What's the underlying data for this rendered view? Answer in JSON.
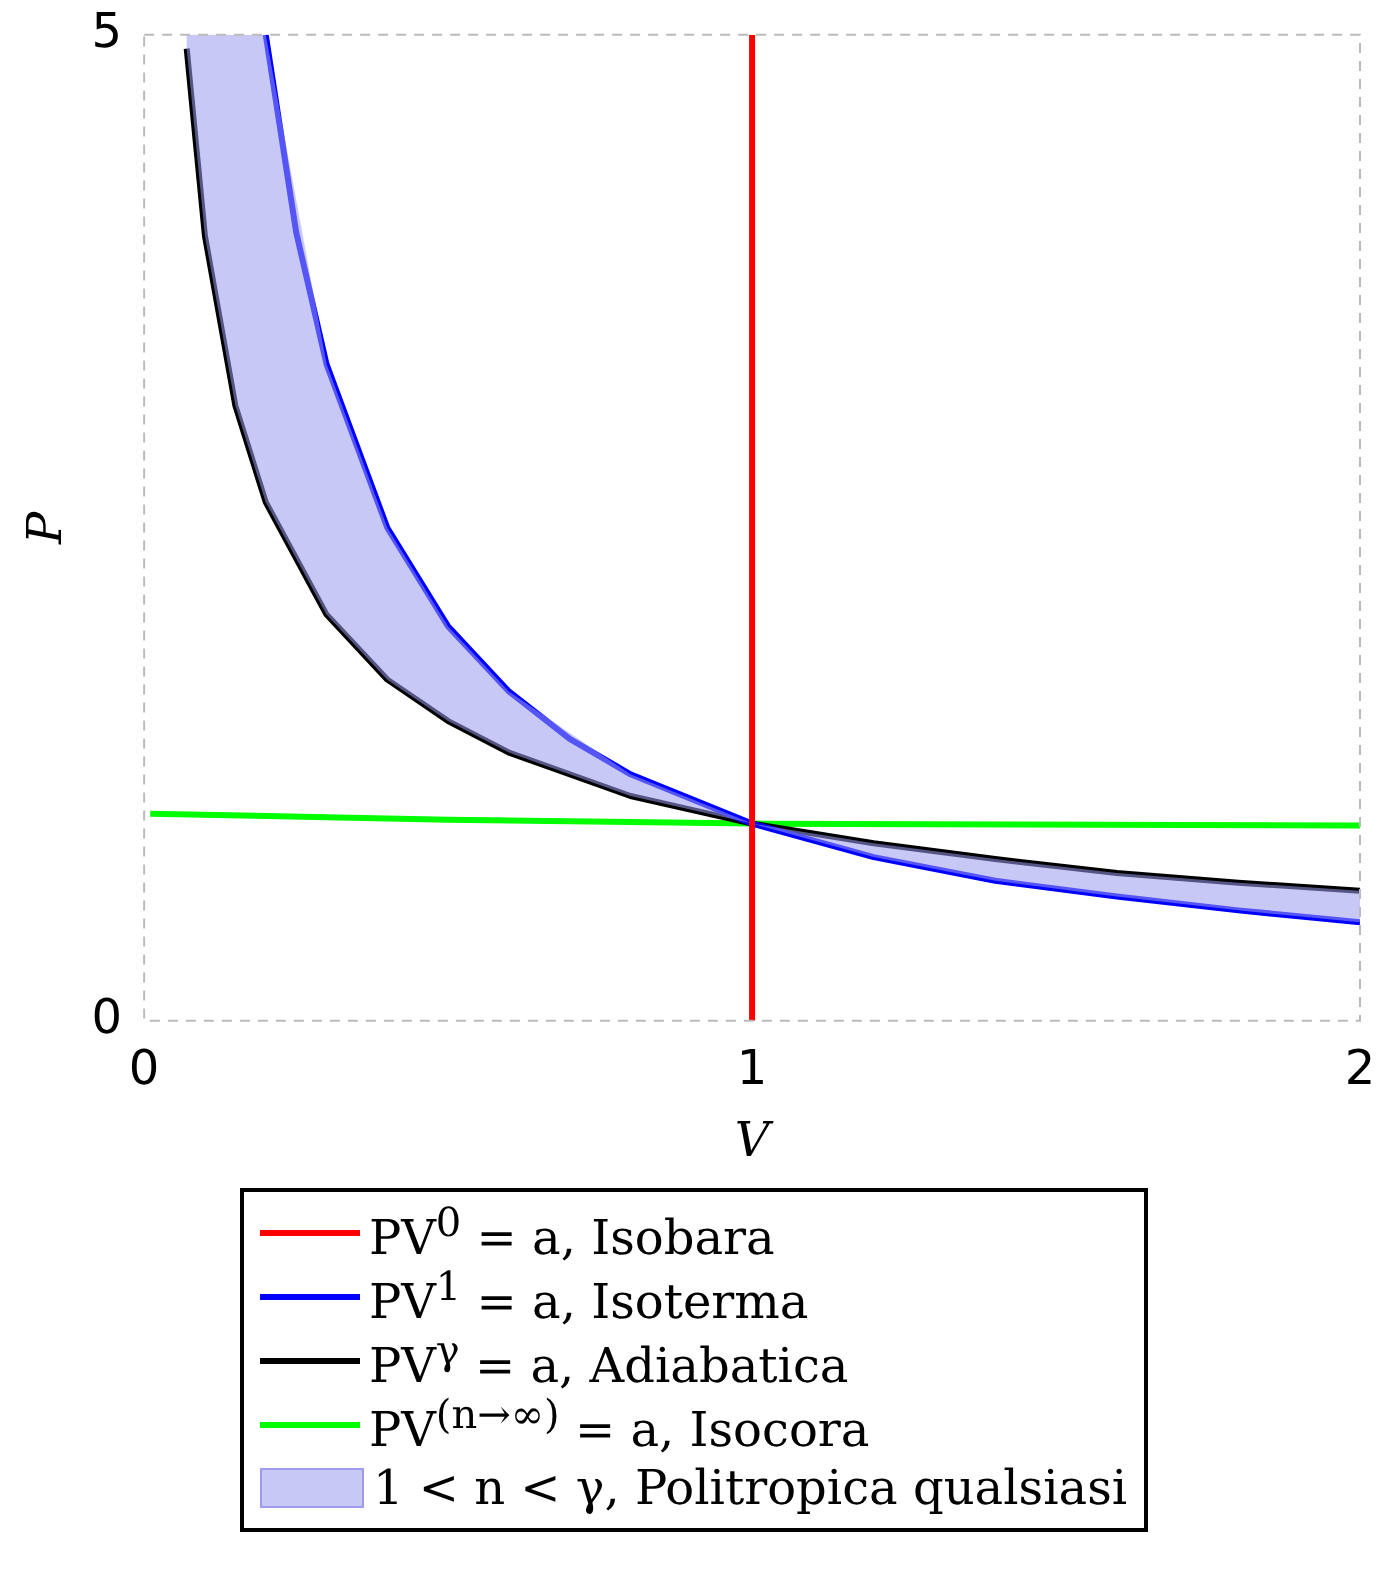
{
  "chart_data": {
    "type": "line",
    "xlabel": "V",
    "ylabel": "P",
    "xlim": [
      0,
      2
    ],
    "xticks": [
      0,
      1,
      2
    ],
    "ylim": [
      0,
      5
    ],
    "yticks": [
      0,
      5
    ],
    "grid": false,
    "legend": "bottom",
    "marker": "none",
    "series": [
      {
        "name": "1 < n < γ, Politropica qualsiasi",
        "type": "area",
        "color": "#9a9aee",
        "x": [
          0.07,
          0.1,
          0.15,
          0.2,
          0.3,
          0.4,
          0.5,
          0.6,
          0.8,
          1,
          1.2,
          1.4,
          1.6,
          1.8,
          2
        ],
        "values": [
          null,
          null,
          null,
          null,
          null,
          null,
          null,
          null,
          null,
          null,
          null,
          null,
          null,
          null,
          null
        ],
        "lower": [
          4.93,
          3.98,
          3.12,
          2.63,
          2.06,
          1.73,
          1.52,
          1.36,
          1.14,
          1,
          0.83,
          0.71,
          0.63,
          0.56,
          0.5
        ],
        "upper": [
          5,
          5,
          5,
          5,
          3.33,
          2.5,
          2,
          1.67,
          1.25,
          1,
          0.9,
          0.82,
          0.75,
          0.7,
          0.66
        ]
      },
      {
        "name": "PV$^{0}$ = a, Isobara",
        "color": "#ff0000",
        "x": [
          1,
          1
        ],
        "values": [
          0,
          5
        ]
      },
      {
        "name": "PV$^{1}$ = a, Isoterma",
        "color": "#0000ff",
        "x": [
          0.2,
          0.25,
          0.3,
          0.4,
          0.5,
          0.6,
          0.7,
          0.8,
          1,
          1.2,
          1.4,
          1.6,
          1.8,
          2
        ],
        "values": [
          5,
          4,
          3.33,
          2.5,
          2,
          1.67,
          1.43,
          1.25,
          1,
          0.83,
          0.71,
          0.63,
          0.56,
          0.5
        ]
      },
      {
        "name": "PV$^{γ}$ = a, Adiabatica",
        "color": "#000000",
        "x": [
          0.07,
          0.1,
          0.15,
          0.2,
          0.3,
          0.4,
          0.5,
          0.6,
          0.8,
          1,
          1.2,
          1.4,
          1.6,
          1.8,
          2
        ],
        "values": [
          4.93,
          3.98,
          3.12,
          2.63,
          2.06,
          1.73,
          1.52,
          1.36,
          1.14,
          1,
          0.9,
          0.82,
          0.75,
          0.7,
          0.66
        ]
      },
      {
        "name": "PV$^{(n→∞)}$ = a, Isocora",
        "color": "#00ff00",
        "x": [
          0.01,
          0.5,
          1,
          2
        ],
        "values": [
          1.05,
          1.02,
          1,
          0.99
        ]
      }
    ]
  }
}
